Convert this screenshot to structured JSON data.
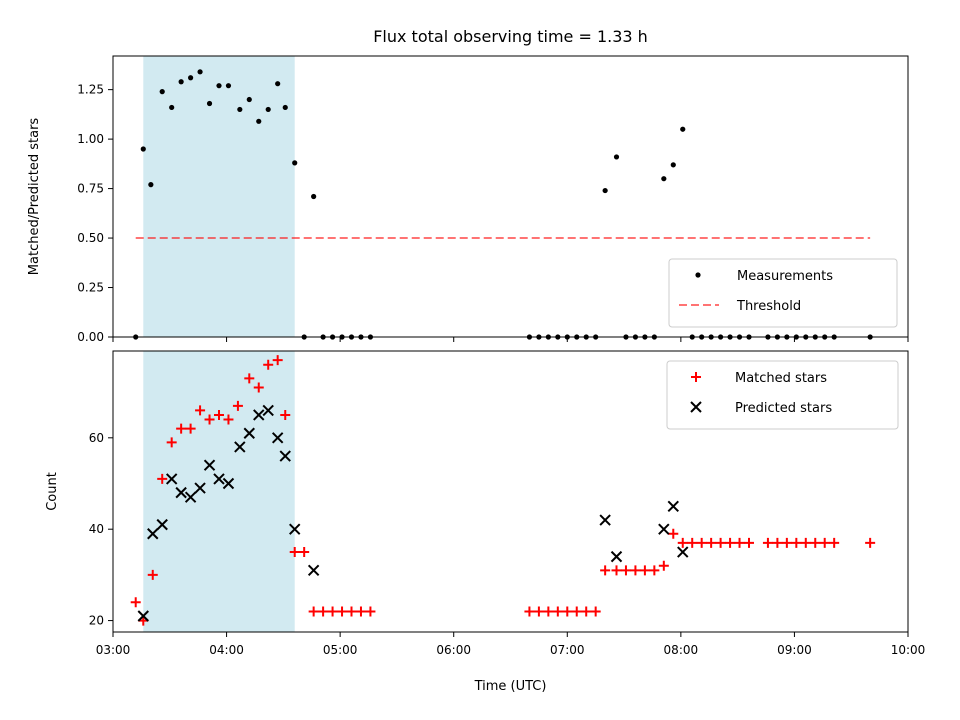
{
  "chart_data": [
    {
      "type": "scatter",
      "title": "Flux total observing time = 1.33 h",
      "ylabel": "Matched/Predicted stars",
      "xlabel": "",
      "xlim": [
        "03:00",
        "10:00"
      ],
      "ylim": [
        0,
        1.42
      ],
      "yticks": [
        "0.00",
        "0.25",
        "0.50",
        "0.75",
        "1.00",
        "1.25"
      ],
      "grid": false,
      "legend_position": "lower-right",
      "highlight_span": [
        "03:16",
        "04:36"
      ],
      "highlight_color": "#add8e6",
      "threshold": {
        "name": "Threshold",
        "y": 0.5,
        "x": [
          "03:12",
          "09:40"
        ],
        "color": "#ff0000"
      },
      "series": [
        {
          "name": "Measurements",
          "color": "#000000",
          "marker": "dot",
          "points": [
            [
              "03:12",
              0
            ],
            [
              "03:16",
              0.95
            ],
            [
              "03:20",
              0.77
            ],
            [
              "03:26",
              1.24
            ],
            [
              "03:31",
              1.16
            ],
            [
              "03:36",
              1.29
            ],
            [
              "03:41",
              1.31
            ],
            [
              "03:46",
              1.34
            ],
            [
              "03:51",
              1.18
            ],
            [
              "03:56",
              1.27
            ],
            [
              "04:01",
              1.27
            ],
            [
              "04:07",
              1.15
            ],
            [
              "04:12",
              1.2
            ],
            [
              "04:17",
              1.09
            ],
            [
              "04:22",
              1.15
            ],
            [
              "04:27",
              1.28
            ],
            [
              "04:31",
              1.16
            ],
            [
              "04:36",
              0.88
            ],
            [
              "04:41",
              0
            ],
            [
              "04:46",
              0.71
            ],
            [
              "04:51",
              0
            ],
            [
              "04:56",
              0
            ],
            [
              "05:01",
              0
            ],
            [
              "05:06",
              0
            ],
            [
              "05:11",
              0
            ],
            [
              "05:16",
              0
            ],
            [
              "06:40",
              0
            ],
            [
              "06:45",
              0
            ],
            [
              "06:50",
              0
            ],
            [
              "06:55",
              0
            ],
            [
              "07:00",
              0
            ],
            [
              "07:05",
              0
            ],
            [
              "07:10",
              0
            ],
            [
              "07:15",
              0
            ],
            [
              "07:20",
              0.74
            ],
            [
              "07:26",
              0.91
            ],
            [
              "07:31",
              0
            ],
            [
              "07:36",
              0
            ],
            [
              "07:41",
              0
            ],
            [
              "07:46",
              0
            ],
            [
              "07:51",
              0.8
            ],
            [
              "07:56",
              0.87
            ],
            [
              "08:01",
              1.05
            ],
            [
              "08:06",
              0
            ],
            [
              "08:11",
              0
            ],
            [
              "08:16",
              0
            ],
            [
              "08:21",
              0
            ],
            [
              "08:26",
              0
            ],
            [
              "08:31",
              0
            ],
            [
              "08:36",
              0
            ],
            [
              "08:46",
              0
            ],
            [
              "08:51",
              0
            ],
            [
              "08:56",
              0
            ],
            [
              "09:01",
              0
            ],
            [
              "09:06",
              0
            ],
            [
              "09:11",
              0
            ],
            [
              "09:16",
              0
            ],
            [
              "09:21",
              0
            ],
            [
              "09:40",
              0
            ]
          ]
        }
      ],
      "legend": [
        {
          "label": "Measurements",
          "kind": "dot",
          "color": "#000000"
        },
        {
          "label": "Threshold",
          "kind": "dash",
          "color": "#ff0000"
        }
      ]
    },
    {
      "type": "scatter",
      "title": "",
      "ylabel": "Count",
      "xlabel": "Time (UTC)",
      "xlim": [
        "03:00",
        "10:00"
      ],
      "xticks": [
        "03:00",
        "04:00",
        "05:00",
        "06:00",
        "07:00",
        "08:00",
        "09:00",
        "10:00"
      ],
      "ylim": [
        17.5,
        79
      ],
      "yticks": [
        "20",
        "40",
        "60"
      ],
      "grid": false,
      "legend_position": "top-right",
      "highlight_span": [
        "03:16",
        "04:36"
      ],
      "highlight_color": "#add8e6",
      "series": [
        {
          "name": "Matched stars",
          "color": "#ff0000",
          "marker": "plus",
          "points": [
            [
              "03:12",
              24
            ],
            [
              "03:16",
              20
            ],
            [
              "03:21",
              30
            ],
            [
              "03:26",
              51
            ],
            [
              "03:31",
              59
            ],
            [
              "03:36",
              62
            ],
            [
              "03:41",
              62
            ],
            [
              "03:46",
              66
            ],
            [
              "03:51",
              64
            ],
            [
              "03:56",
              65
            ],
            [
              "04:01",
              64
            ],
            [
              "04:06",
              67
            ],
            [
              "04:12",
              73
            ],
            [
              "04:17",
              71
            ],
            [
              "04:22",
              76
            ],
            [
              "04:27",
              77
            ],
            [
              "04:31",
              65
            ],
            [
              "04:36",
              35
            ],
            [
              "04:41",
              35
            ],
            [
              "04:46",
              22
            ],
            [
              "04:51",
              22
            ],
            [
              "04:56",
              22
            ],
            [
              "05:01",
              22
            ],
            [
              "05:06",
              22
            ],
            [
              "05:11",
              22
            ],
            [
              "05:16",
              22
            ],
            [
              "06:40",
              22
            ],
            [
              "06:45",
              22
            ],
            [
              "06:50",
              22
            ],
            [
              "06:55",
              22
            ],
            [
              "07:00",
              22
            ],
            [
              "07:05",
              22
            ],
            [
              "07:10",
              22
            ],
            [
              "07:15",
              22
            ],
            [
              "07:20",
              31
            ],
            [
              "07:26",
              31
            ],
            [
              "07:31",
              31
            ],
            [
              "07:36",
              31
            ],
            [
              "07:41",
              31
            ],
            [
              "07:46",
              31
            ],
            [
              "07:51",
              32
            ],
            [
              "07:56",
              39
            ],
            [
              "08:01",
              37
            ],
            [
              "08:06",
              37
            ],
            [
              "08:11",
              37
            ],
            [
              "08:16",
              37
            ],
            [
              "08:21",
              37
            ],
            [
              "08:26",
              37
            ],
            [
              "08:31",
              37
            ],
            [
              "08:36",
              37
            ],
            [
              "08:46",
              37
            ],
            [
              "08:51",
              37
            ],
            [
              "08:56",
              37
            ],
            [
              "09:01",
              37
            ],
            [
              "09:06",
              37
            ],
            [
              "09:11",
              37
            ],
            [
              "09:16",
              37
            ],
            [
              "09:21",
              37
            ],
            [
              "09:40",
              37
            ]
          ]
        },
        {
          "name": "Predicted stars",
          "color": "#000000",
          "marker": "x",
          "points": [
            [
              "03:16",
              21
            ],
            [
              "03:21",
              39
            ],
            [
              "03:26",
              41
            ],
            [
              "03:31",
              51
            ],
            [
              "03:36",
              48
            ],
            [
              "03:41",
              47
            ],
            [
              "03:46",
              49
            ],
            [
              "03:51",
              54
            ],
            [
              "03:56",
              51
            ],
            [
              "04:01",
              50
            ],
            [
              "04:07",
              58
            ],
            [
              "04:12",
              61
            ],
            [
              "04:17",
              65
            ],
            [
              "04:22",
              66
            ],
            [
              "04:27",
              60
            ],
            [
              "04:31",
              56
            ],
            [
              "04:36",
              40
            ],
            [
              "04:46",
              31
            ],
            [
              "07:20",
              42
            ],
            [
              "07:26",
              34
            ],
            [
              "07:51",
              40
            ],
            [
              "07:56",
              45
            ],
            [
              "08:01",
              35
            ]
          ]
        }
      ],
      "legend": [
        {
          "label": "Matched stars",
          "kind": "plus",
          "color": "#ff0000"
        },
        {
          "label": "Predicted stars",
          "kind": "x",
          "color": "#000000"
        }
      ]
    }
  ]
}
